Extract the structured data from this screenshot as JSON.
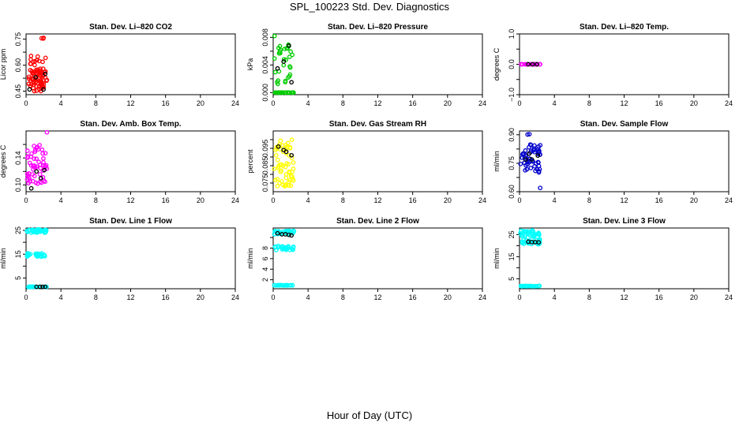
{
  "figure": {
    "title": "SPL_100223  Std. Dev. Diagnostics",
    "xlabel": "Hour of Day (UTC)"
  },
  "chart_data": [
    {
      "type": "scatter",
      "title": "Stan. Dev. Li–820 CO2",
      "ylabel": "Licor ppm",
      "color": "#ff0000",
      "xlim": [
        0,
        24
      ],
      "xticks": [
        "0",
        "4",
        "8",
        "12",
        "16",
        "20",
        "24"
      ],
      "ylim": [
        0.43,
        0.78
      ],
      "yticks": [
        0.45,
        0.6,
        0.75
      ],
      "ytick_labels": [
        "0.45",
        "0.60",
        "0.75"
      ],
      "ymid_ticks": [
        0.525,
        0.675
      ],
      "clusters": [
        [
          0.3,
          2.4,
          0.45,
          0.58,
          70
        ],
        [
          0.3,
          2.3,
          0.6,
          0.66,
          12
        ],
        [
          1.7,
          2.1,
          0.75,
          0.76,
          3
        ]
      ],
      "highlight": [
        [
          0.4,
          0.46
        ],
        [
          1.1,
          0.53
        ],
        [
          2.0,
          0.46
        ],
        [
          2.2,
          0.55
        ]
      ]
    },
    {
      "type": "scatter",
      "title": "Stan. Dev. Li–820 Pressure",
      "ylabel": "kPa",
      "color": "#00cc00",
      "xlim": [
        0,
        24
      ],
      "xticks": [
        "0",
        "4",
        "8",
        "12",
        "16",
        "20",
        "24"
      ],
      "ylim": [
        -0.0003,
        0.0085
      ],
      "yticks": [
        0.0,
        0.004,
        0.008
      ],
      "ytick_labels": [
        "0.000",
        "0.004",
        "0.008"
      ],
      "ymid_ticks": [
        0.002,
        0.006
      ],
      "clusters": [
        [
          0.1,
          2.4,
          0.0,
          0.0,
          26
        ],
        [
          0.1,
          2.4,
          0.001,
          0.007,
          30
        ],
        [
          0.1,
          0.2,
          0.0082,
          0.0082,
          1
        ]
      ],
      "highlight": [
        [
          0.5,
          0.0035
        ],
        [
          1.2,
          0.0045
        ],
        [
          1.8,
          0.0068
        ],
        [
          2.1,
          0.0015
        ]
      ]
    },
    {
      "type": "scatter",
      "title": "Stan. Dev. Li–820 Temp.",
      "ylabel": "degrees C",
      "color": "#ff00ff",
      "xlim": [
        0,
        24
      ],
      "xticks": [
        "0",
        "4",
        "8",
        "12",
        "16",
        "20",
        "24"
      ],
      "ylim": [
        -1.0,
        1.0
      ],
      "yticks": [
        -1.0,
        0.0,
        1.0
      ],
      "ytick_labels": [
        "−1.0",
        "0.0",
        "1.0"
      ],
      "ymid_ticks": [
        -0.5,
        0.5
      ],
      "clusters": [
        [
          0.1,
          2.4,
          0.0,
          0.0,
          22
        ]
      ],
      "highlight": [
        [
          1.0,
          0.0
        ],
        [
          1.5,
          0.0
        ],
        [
          2.0,
          0.0
        ]
      ]
    },
    {
      "type": "scatter",
      "title": "Stan. Dev. Amb. Box Temp.",
      "ylabel": "degrees C",
      "color": "#ff00ff",
      "xlim": [
        0,
        24
      ],
      "xticks": [
        "0",
        "4",
        "8",
        "12",
        "16",
        "20",
        "24"
      ],
      "ylim": [
        0.09,
        0.18
      ],
      "yticks": [
        0.1,
        0.14
      ],
      "ytick_labels": [
        "0.10",
        "0.14"
      ],
      "ymid_ticks": [
        0.12,
        0.16
      ],
      "clusters": [
        [
          0.1,
          2.4,
          0.1,
          0.16,
          55
        ],
        [
          2.3,
          2.4,
          0.178,
          0.178,
          1
        ]
      ],
      "highlight": [
        [
          0.6,
          0.095
        ],
        [
          1.2,
          0.12
        ],
        [
          1.7,
          0.11
        ],
        [
          2.1,
          0.122
        ]
      ]
    },
    {
      "type": "scatter",
      "title": "Stan. Dev. Gas Stream RH",
      "ylabel": "percent",
      "color": "#ffff00",
      "xlim": [
        0,
        24
      ],
      "xticks": [
        "0",
        "4",
        "8",
        "12",
        "16",
        "20",
        "24"
      ],
      "ylim": [
        0.07,
        0.105
      ],
      "yticks": [
        0.075,
        0.085,
        0.095
      ],
      "ytick_labels": [
        "0.075",
        "0.085",
        "0.095"
      ],
      "ymid_ticks": [
        0.08,
        0.09,
        0.1
      ],
      "clusters": [
        [
          0.1,
          2.4,
          0.073,
          0.1,
          60
        ]
      ],
      "highlight": [
        [
          0.6,
          0.096
        ],
        [
          1.2,
          0.094
        ],
        [
          1.5,
          0.093
        ],
        [
          2.1,
          0.091
        ]
      ]
    },
    {
      "type": "scatter",
      "title": "Stan. Dev. Sample Flow",
      "ylabel": "ml/min",
      "color": "#0000cc",
      "xlim": [
        0,
        24
      ],
      "xticks": [
        "0",
        "4",
        "8",
        "12",
        "16",
        "20",
        "24"
      ],
      "ylim": [
        0.6,
        0.92
      ],
      "yticks": [
        0.6,
        0.75,
        0.9
      ],
      "ytick_labels": [
        "0.60",
        "0.75",
        "0.90"
      ],
      "ymid_ticks": [
        0.675,
        0.825
      ],
      "clusters": [
        [
          0.1,
          2.4,
          0.7,
          0.85,
          55
        ],
        [
          0.9,
          1.2,
          0.9,
          0.91,
          2
        ],
        [
          2.3,
          2.4,
          0.62,
          0.62,
          1
        ]
      ],
      "highlight": [
        [
          0.7,
          0.77
        ],
        [
          1.1,
          0.8
        ],
        [
          1.4,
          0.77
        ],
        [
          2.1,
          0.79
        ]
      ]
    },
    {
      "type": "scatter",
      "title": "Stan. Dev. Line 1 Flow",
      "ylabel": "ml/min",
      "color": "#00ffff",
      "xlim": [
        0,
        24
      ],
      "xticks": [
        "0",
        "4",
        "8",
        "12",
        "16",
        "20",
        "24"
      ],
      "ylim": [
        0.5,
        26.0
      ],
      "yticks": [
        5,
        15,
        25
      ],
      "ytick_labels": [
        "5",
        "15",
        "25"
      ],
      "ymid_ticks": [
        10,
        20
      ],
      "clusters": [
        [
          0.1,
          2.4,
          24,
          25.5,
          30
        ],
        [
          0.1,
          2.4,
          14,
          15.5,
          30
        ],
        [
          0.1,
          2.4,
          1.2,
          1.4,
          25
        ]
      ],
      "highlight": [
        [
          1.2,
          1.3
        ],
        [
          1.6,
          1.3
        ],
        [
          1.9,
          1.3
        ],
        [
          2.2,
          1.3
        ]
      ]
    },
    {
      "type": "scatter",
      "title": "Stan. Dev. Line 2 Flow",
      "ylabel": "ml/min",
      "color": "#00ffff",
      "xlim": [
        0,
        24
      ],
      "xticks": [
        "0",
        "4",
        "8",
        "12",
        "16",
        "20",
        "24"
      ],
      "ylim": [
        0.3,
        11.8
      ],
      "yticks": [
        2,
        4,
        6,
        8
      ],
      "ytick_labels": [
        "2",
        "4",
        "6",
        "8"
      ],
      "ymid_ticks": [
        10
      ],
      "clusters": [
        [
          0.1,
          2.4,
          10.6,
          11.3,
          30
        ],
        [
          0.1,
          2.4,
          7.6,
          8.4,
          30
        ],
        [
          0.1,
          2.4,
          0.9,
          1.0,
          25
        ]
      ],
      "highlight": [
        [
          0.5,
          10.8
        ],
        [
          1.0,
          10.6
        ],
        [
          1.4,
          10.6
        ],
        [
          1.8,
          10.5
        ],
        [
          2.1,
          10.4
        ]
      ]
    },
    {
      "type": "scatter",
      "title": "Stan. Dev. Line 3 Flow",
      "ylabel": "ml/min",
      "color": "#00ffff",
      "xlim": [
        0,
        24
      ],
      "xticks": [
        "0",
        "4",
        "8",
        "12",
        "16",
        "20",
        "24"
      ],
      "ylim": [
        0.5,
        28.0
      ],
      "yticks": [
        5,
        15,
        25
      ],
      "ytick_labels": [
        "5",
        "15",
        "25"
      ],
      "ymid_ticks": [
        10,
        20
      ],
      "clusters": [
        [
          0.1,
          2.4,
          24,
          27,
          30
        ],
        [
          0.1,
          2.4,
          20.5,
          23,
          30
        ],
        [
          0.1,
          2.4,
          1.6,
          1.8,
          25
        ]
      ],
      "highlight": [
        [
          1.0,
          21.8
        ],
        [
          1.4,
          21.6
        ],
        [
          1.8,
          21.6
        ],
        [
          2.2,
          21.5
        ]
      ]
    }
  ]
}
